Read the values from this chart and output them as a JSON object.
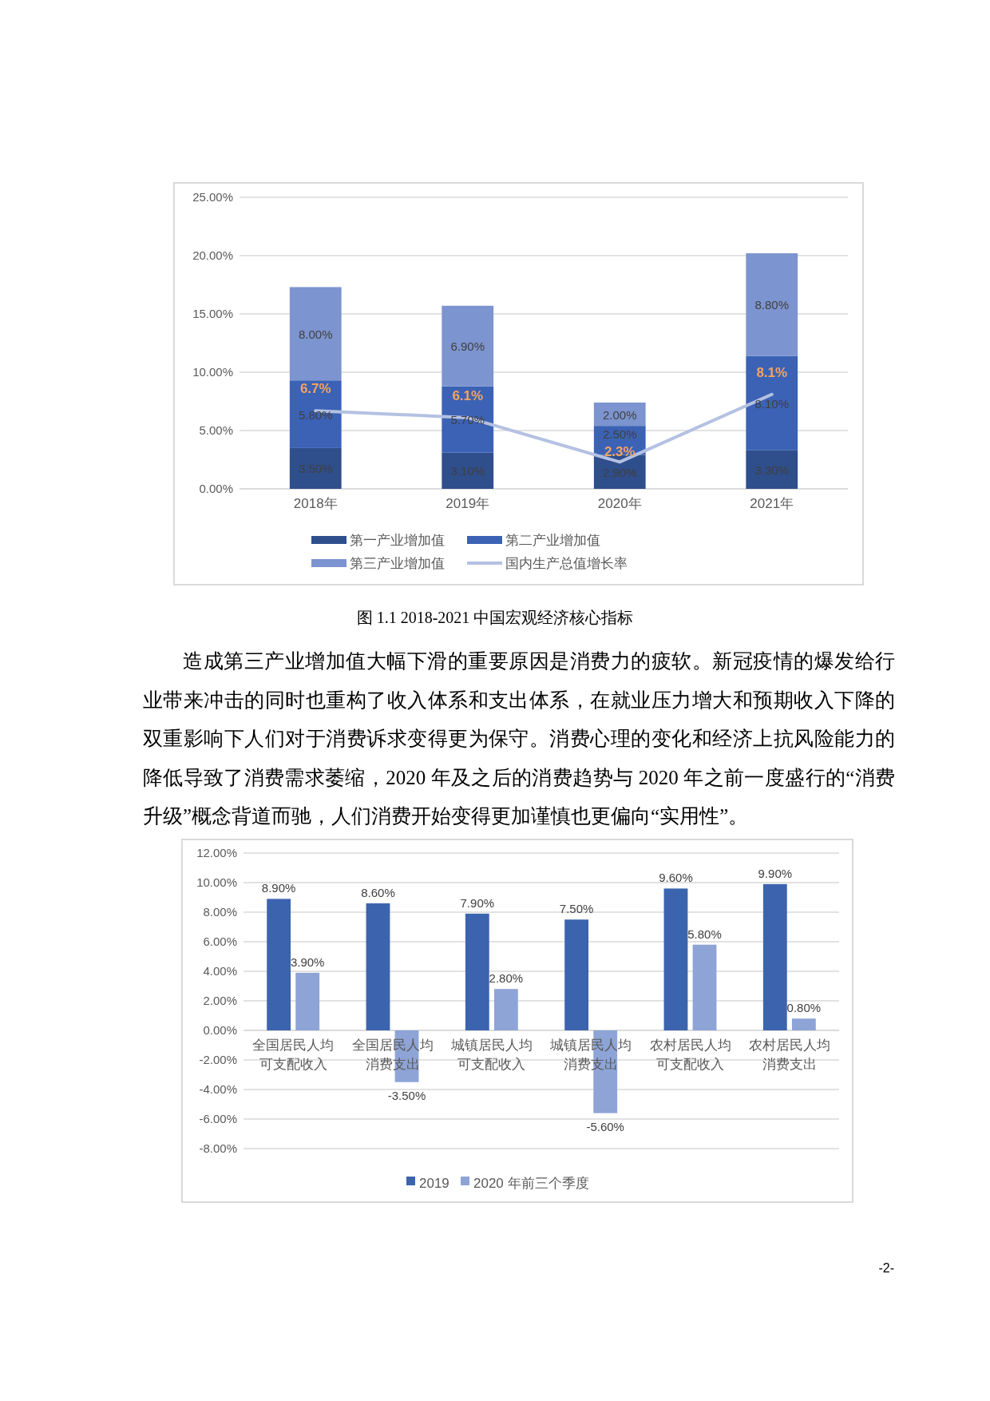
{
  "chart_data": [
    {
      "type": "bar",
      "title": "图 1.1 2018-2021 中国宏观经济核心指标",
      "stacked": true,
      "legend": "bottom",
      "grid": "y",
      "categories": [
        "2018年",
        "2019年",
        "2020年",
        "2021年"
      ],
      "ylim": [
        0,
        25
      ],
      "yticks": [
        {
          "value": 0,
          "label": "0.00%"
        },
        {
          "value": 5,
          "label": "5.00%"
        },
        {
          "value": 10,
          "label": "10.00%"
        },
        {
          "value": 15,
          "label": "15.00%"
        },
        {
          "value": 20,
          "label": "20.00%"
        },
        {
          "value": 25,
          "label": "25.00%"
        }
      ],
      "series": [
        {
          "name": "第一产业增加值",
          "color": "#2f4e8c",
          "values": [
            3.5,
            3.1,
            2.9,
            3.3
          ],
          "value_labels": [
            "3.50%",
            "3.10%",
            "2.90%",
            "3.30%"
          ]
        },
        {
          "name": "第二产业增加值",
          "color": "#3b62b5",
          "values": [
            5.8,
            5.7,
            2.5,
            8.1
          ],
          "value_labels": [
            "5.80%",
            "5.70%",
            "2.50%",
            "8.10%"
          ]
        },
        {
          "name": "第三产业增加值",
          "color": "#7c94cf",
          "values": [
            8.0,
            6.9,
            2.0,
            8.8
          ],
          "value_labels": [
            "8.00%",
            "6.90%",
            "2.00%",
            "8.80%"
          ]
        },
        {
          "name": "国内生产总值增长率",
          "type": "line",
          "color": "#b4c1e2",
          "values": [
            6.7,
            6.1,
            2.3,
            8.1
          ],
          "value_labels": [
            "6.7%",
            "6.1%",
            "2.3%",
            "8.1%"
          ]
        }
      ],
      "annotations": [
        "造成第三产业增加值大幅下滑的重要原因是消费力的疲软。新冠疫情的爆发给行业带来冲击的同时也重构了收入体系和支出体系，在就业压力增大和预期收入下降的双重影响下人们对于消费诉求变得更为保守。消费心理的变化和经济上抗风险能力的降低导致了消费需求萎缩，2020 年及之后的消费趋势与 2020 年之前一度盛行的“消费升级”概念背道而驰，人们消费开始变得更加谨慎也更偏向“实用性”。"
      ]
    },
    {
      "type": "bar",
      "legend": "bottom",
      "grid": "y",
      "categories": [
        "全国居民人均可支配收入",
        "全国居民人均消费支出",
        "城镇居民人均可支配收入",
        "城镇居民人均消费支出",
        "农村居民人均可支配收入",
        "农村居民人均消费支出"
      ],
      "ylim": [
        -8,
        12
      ],
      "yticks": [
        {
          "value": -8,
          "label": "-8.00%"
        },
        {
          "value": -6,
          "label": "-6.00%"
        },
        {
          "value": -4,
          "label": "-4.00%"
        },
        {
          "value": -2,
          "label": "-2.00%"
        },
        {
          "value": 0,
          "label": "0.00%"
        },
        {
          "value": 2,
          "label": "2.00%"
        },
        {
          "value": 4,
          "label": "4.00%"
        },
        {
          "value": 6,
          "label": "6.00%"
        },
        {
          "value": 8,
          "label": "8.00%"
        },
        {
          "value": 10,
          "label": "10.00%"
        },
        {
          "value": 12,
          "label": "12.00%"
        }
      ],
      "series": [
        {
          "name": "2019",
          "color": "#3c64ae",
          "values": [
            8.9,
            8.6,
            7.9,
            7.5,
            9.6,
            9.9
          ],
          "value_labels": [
            "8.90%",
            "8.60%",
            "7.90%",
            "7.50%",
            "9.60%",
            "9.90%"
          ]
        },
        {
          "name": "2020 年前三个季度",
          "color": "#8ea4d6",
          "values": [
            3.9,
            -3.5,
            2.8,
            -5.6,
            5.8,
            0.8
          ],
          "value_labels": [
            "3.90%",
            "-3.50%",
            "2.80%",
            "-5.60%",
            "5.80%",
            "0.80%"
          ]
        }
      ],
      "annotations": [
        "-2-"
      ]
    }
  ]
}
